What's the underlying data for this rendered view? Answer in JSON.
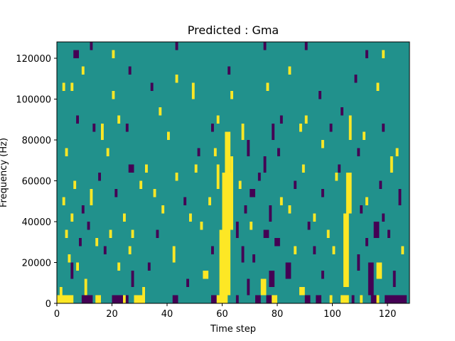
{
  "chart_data": {
    "type": "heatmap",
    "title": "Predicted : Gma",
    "xlabel": "Time step",
    "ylabel": "Frequency (Hz)",
    "xlim": [
      0,
      128
    ],
    "ylim": [
      0,
      128000
    ],
    "x_ticks": [
      0,
      20,
      40,
      60,
      80,
      100,
      120
    ],
    "y_ticks": [
      0,
      20000,
      40000,
      60000,
      80000,
      100000,
      120000
    ],
    "n_time_steps": 128,
    "n_freq_bins": 32,
    "freq_bin_width_hz": 4000,
    "value_levels": [
      -1,
      0,
      1
    ],
    "colormap": {
      "-1": "#440154",
      "0": "#21918c",
      "1": "#fde725"
    },
    "background_value": 0,
    "cells": [
      {
        "v": 1,
        "x0": 0,
        "x1": 6,
        "y0": 0,
        "y1": 4000
      },
      {
        "v": 1,
        "x0": 14,
        "x1": 16,
        "y0": 0,
        "y1": 4000
      },
      {
        "v": -1,
        "x0": 9,
        "x1": 13,
        "y0": 0,
        "y1": 4000
      },
      {
        "v": -1,
        "x0": 20,
        "x1": 24,
        "y0": 0,
        "y1": 4000
      },
      {
        "v": 1,
        "x0": 24,
        "x1": 25,
        "y0": 0,
        "y1": 4000
      },
      {
        "v": -1,
        "x0": 25,
        "x1": 26,
        "y0": 0,
        "y1": 4000
      },
      {
        "v": 1,
        "x0": 28,
        "x1": 32,
        "y0": 0,
        "y1": 4000
      },
      {
        "v": -1,
        "x0": 42,
        "x1": 44,
        "y0": 0,
        "y1": 4000
      },
      {
        "v": -1,
        "x0": 56,
        "x1": 58,
        "y0": 0,
        "y1": 4000
      },
      {
        "v": 1,
        "x0": 58,
        "x1": 62,
        "y0": 0,
        "y1": 4000
      },
      {
        "v": -1,
        "x0": 65,
        "x1": 66,
        "y0": 0,
        "y1": 4000
      },
      {
        "v": -1,
        "x0": 72,
        "x1": 74,
        "y0": 0,
        "y1": 4000
      },
      {
        "v": -1,
        "x0": 76,
        "x1": 78,
        "y0": 0,
        "y1": 4000
      },
      {
        "v": 1,
        "x0": 78,
        "x1": 80,
        "y0": 0,
        "y1": 4000
      },
      {
        "v": -1,
        "x0": 90,
        "x1": 92,
        "y0": 0,
        "y1": 4000
      },
      {
        "v": -1,
        "x0": 94,
        "x1": 96,
        "y0": 0,
        "y1": 4000
      },
      {
        "v": 1,
        "x0": 99,
        "x1": 100,
        "y0": 0,
        "y1": 4000
      },
      {
        "v": 1,
        "x0": 103,
        "x1": 106,
        "y0": 0,
        "y1": 4000
      },
      {
        "v": -1,
        "x0": 107,
        "x1": 108,
        "y0": 0,
        "y1": 4000
      },
      {
        "v": 1,
        "x0": 110,
        "x1": 111,
        "y0": 0,
        "y1": 4000
      },
      {
        "v": -1,
        "x0": 114,
        "x1": 116,
        "y0": 0,
        "y1": 4000
      },
      {
        "v": 1,
        "x0": 116,
        "x1": 117,
        "y0": 0,
        "y1": 4000
      },
      {
        "v": -1,
        "x0": 119,
        "x1": 127,
        "y0": 0,
        "y1": 4000
      },
      {
        "v": 1,
        "x0": 59,
        "x1": 63,
        "y0": 4000,
        "y1": 36000
      },
      {
        "v": 1,
        "x0": 60,
        "x1": 64,
        "y0": 36000,
        "y1": 64000
      },
      {
        "v": 1,
        "x0": 61,
        "x1": 63,
        "y0": 64000,
        "y1": 84000
      },
      {
        "v": 1,
        "x0": 58,
        "x1": 59,
        "y0": 56000,
        "y1": 68000
      },
      {
        "v": 1,
        "x0": 63,
        "x1": 64,
        "y0": 60000,
        "y1": 72000
      },
      {
        "v": 1,
        "x0": 104,
        "x1": 106,
        "y0": 8000,
        "y1": 44000
      },
      {
        "v": 1,
        "x0": 105,
        "x1": 107,
        "y0": 44000,
        "y1": 64000
      },
      {
        "v": 1,
        "x0": 106,
        "x1": 107,
        "y0": 80000,
        "y1": 92000
      },
      {
        "v": 1,
        "x0": 1,
        "x1": 2,
        "y0": 4000,
        "y1": 8000
      },
      {
        "v": -1,
        "x0": 5,
        "x1": 6,
        "y0": 12000,
        "y1": 20000
      },
      {
        "v": 1,
        "x0": 10,
        "x1": 11,
        "y0": 4000,
        "y1": 12000
      },
      {
        "v": 1,
        "x0": 7,
        "x1": 8,
        "y0": 16000,
        "y1": 20000
      },
      {
        "v": 1,
        "x0": 22,
        "x1": 23,
        "y0": 16000,
        "y1": 20000
      },
      {
        "v": -1,
        "x0": 27,
        "x1": 28,
        "y0": 8000,
        "y1": 16000
      },
      {
        "v": 1,
        "x0": 31,
        "x1": 32,
        "y0": 4000,
        "y1": 8000
      },
      {
        "v": -1,
        "x0": 33,
        "x1": 34,
        "y0": 16000,
        "y1": 20000
      },
      {
        "v": -1,
        "x0": 47,
        "x1": 48,
        "y0": 8000,
        "y1": 12000
      },
      {
        "v": 1,
        "x0": 53,
        "x1": 55,
        "y0": 12000,
        "y1": 16000
      },
      {
        "v": -1,
        "x0": 69,
        "x1": 70,
        "y0": 4000,
        "y1": 12000
      },
      {
        "v": 1,
        "x0": 74,
        "x1": 76,
        "y0": 4000,
        "y1": 12000
      },
      {
        "v": -1,
        "x0": 77,
        "x1": 79,
        "y0": 8000,
        "y1": 16000
      },
      {
        "v": -1,
        "x0": 83,
        "x1": 85,
        "y0": 12000,
        "y1": 20000
      },
      {
        "v": 1,
        "x0": 88,
        "x1": 90,
        "y0": 4000,
        "y1": 8000
      },
      {
        "v": -1,
        "x0": 96,
        "x1": 97,
        "y0": 12000,
        "y1": 16000
      },
      {
        "v": -1,
        "x0": 109,
        "x1": 110,
        "y0": 16000,
        "y1": 24000
      },
      {
        "v": -1,
        "x0": 113,
        "x1": 115,
        "y0": 4000,
        "y1": 20000
      },
      {
        "v": 1,
        "x0": 116,
        "x1": 118,
        "y0": 12000,
        "y1": 20000
      },
      {
        "v": -1,
        "x0": 122,
        "x1": 123,
        "y0": 8000,
        "y1": 16000
      },
      {
        "v": 1,
        "x0": 4,
        "x1": 5,
        "y0": 20000,
        "y1": 24000
      },
      {
        "v": -1,
        "x0": 8,
        "x1": 9,
        "y0": 28000,
        "y1": 32000
      },
      {
        "v": 1,
        "x0": 14,
        "x1": 15,
        "y0": 28000,
        "y1": 32000
      },
      {
        "v": -1,
        "x0": 17,
        "x1": 18,
        "y0": 24000,
        "y1": 28000
      },
      {
        "v": 1,
        "x0": 26,
        "x1": 27,
        "y0": 24000,
        "y1": 28000
      },
      {
        "v": 1,
        "x0": 42,
        "x1": 43,
        "y0": 20000,
        "y1": 28000
      },
      {
        "v": -1,
        "x0": 56,
        "x1": 57,
        "y0": 24000,
        "y1": 28000
      },
      {
        "v": -1,
        "x0": 67,
        "x1": 68,
        "y0": 20000,
        "y1": 28000
      },
      {
        "v": -1,
        "x0": 71,
        "x1": 72,
        "y0": 20000,
        "y1": 24000
      },
      {
        "v": -1,
        "x0": 79,
        "x1": 81,
        "y0": 28000,
        "y1": 32000
      },
      {
        "v": 1,
        "x0": 86,
        "x1": 87,
        "y0": 24000,
        "y1": 28000
      },
      {
        "v": -1,
        "x0": 93,
        "x1": 94,
        "y0": 24000,
        "y1": 28000
      },
      {
        "v": 1,
        "x0": 100,
        "x1": 101,
        "y0": 24000,
        "y1": 28000
      },
      {
        "v": -1,
        "x0": 112,
        "x1": 113,
        "y0": 28000,
        "y1": 32000
      },
      {
        "v": 1,
        "x0": 125,
        "x1": 126,
        "y0": 24000,
        "y1": 28000
      },
      {
        "v": 1,
        "x0": 3,
        "x1": 4,
        "y0": 32000,
        "y1": 36000
      },
      {
        "v": -1,
        "x0": 11,
        "x1": 12,
        "y0": 36000,
        "y1": 40000
      },
      {
        "v": 1,
        "x0": 19,
        "x1": 20,
        "y0": 32000,
        "y1": 36000
      },
      {
        "v": 1,
        "x0": 27,
        "x1": 28,
        "y0": 32000,
        "y1": 36000
      },
      {
        "v": -1,
        "x0": 36,
        "x1": 37,
        "y0": 32000,
        "y1": 36000
      },
      {
        "v": 1,
        "x0": 52,
        "x1": 53,
        "y0": 36000,
        "y1": 40000
      },
      {
        "v": -1,
        "x0": 65,
        "x1": 66,
        "y0": 32000,
        "y1": 40000
      },
      {
        "v": 1,
        "x0": 70,
        "x1": 71,
        "y0": 36000,
        "y1": 40000
      },
      {
        "v": -1,
        "x0": 75,
        "x1": 77,
        "y0": 32000,
        "y1": 36000
      },
      {
        "v": -1,
        "x0": 91,
        "x1": 92,
        "y0": 36000,
        "y1": 40000
      },
      {
        "v": 1,
        "x0": 98,
        "x1": 99,
        "y0": 32000,
        "y1": 36000
      },
      {
        "v": -1,
        "x0": 115,
        "x1": 117,
        "y0": 32000,
        "y1": 40000
      },
      {
        "v": -1,
        "x0": 120,
        "x1": 121,
        "y0": 32000,
        "y1": 36000
      },
      {
        "v": 1,
        "x0": 5,
        "x1": 6,
        "y0": 40000,
        "y1": 44000
      },
      {
        "v": -1,
        "x0": 9,
        "x1": 10,
        "y0": 44000,
        "y1": 48000
      },
      {
        "v": 1,
        "x0": 24,
        "x1": 25,
        "y0": 40000,
        "y1": 44000
      },
      {
        "v": 1,
        "x0": 38,
        "x1": 39,
        "y0": 44000,
        "y1": 48000
      },
      {
        "v": 1,
        "x0": 48,
        "x1": 49,
        "y0": 40000,
        "y1": 44000
      },
      {
        "v": -1,
        "x0": 68,
        "x1": 69,
        "y0": 44000,
        "y1": 48000
      },
      {
        "v": -1,
        "x0": 77,
        "x1": 78,
        "y0": 40000,
        "y1": 48000
      },
      {
        "v": 1,
        "x0": 84,
        "x1": 85,
        "y0": 44000,
        "y1": 48000
      },
      {
        "v": 1,
        "x0": 93,
        "x1": 94,
        "y0": 40000,
        "y1": 44000
      },
      {
        "v": -1,
        "x0": 110,
        "x1": 111,
        "y0": 44000,
        "y1": 48000
      },
      {
        "v": -1,
        "x0": 118,
        "x1": 119,
        "y0": 40000,
        "y1": 44000
      },
      {
        "v": 1,
        "x0": 2,
        "x1": 3,
        "y0": 48000,
        "y1": 52000
      },
      {
        "v": 1,
        "x0": 12,
        "x1": 13,
        "y0": 48000,
        "y1": 56000
      },
      {
        "v": -1,
        "x0": 21,
        "x1": 22,
        "y0": 52000,
        "y1": 56000
      },
      {
        "v": 1,
        "x0": 35,
        "x1": 36,
        "y0": 52000,
        "y1": 56000
      },
      {
        "v": -1,
        "x0": 46,
        "x1": 47,
        "y0": 48000,
        "y1": 52000
      },
      {
        "v": 1,
        "x0": 55,
        "x1": 56,
        "y0": 48000,
        "y1": 52000
      },
      {
        "v": -1,
        "x0": 70,
        "x1": 72,
        "y0": 52000,
        "y1": 56000
      },
      {
        "v": 1,
        "x0": 81,
        "x1": 82,
        "y0": 48000,
        "y1": 52000
      },
      {
        "v": -1,
        "x0": 96,
        "x1": 97,
        "y0": 52000,
        "y1": 56000
      },
      {
        "v": 1,
        "x0": 112,
        "x1": 113,
        "y0": 48000,
        "y1": 52000
      },
      {
        "v": -1,
        "x0": 124,
        "x1": 125,
        "y0": 48000,
        "y1": 56000
      },
      {
        "v": 1,
        "x0": 6,
        "x1": 7,
        "y0": 56000,
        "y1": 60000
      },
      {
        "v": -1,
        "x0": 15,
        "x1": 16,
        "y0": 60000,
        "y1": 64000
      },
      {
        "v": 1,
        "x0": 30,
        "x1": 31,
        "y0": 56000,
        "y1": 60000
      },
      {
        "v": 1,
        "x0": 43,
        "x1": 44,
        "y0": 60000,
        "y1": 64000
      },
      {
        "v": 1,
        "x0": 66,
        "x1": 67,
        "y0": 56000,
        "y1": 60000
      },
      {
        "v": -1,
        "x0": 73,
        "x1": 74,
        "y0": 60000,
        "y1": 64000
      },
      {
        "v": -1,
        "x0": 86,
        "x1": 87,
        "y0": 56000,
        "y1": 60000
      },
      {
        "v": 1,
        "x0": 101,
        "x1": 102,
        "y0": 60000,
        "y1": 64000
      },
      {
        "v": -1,
        "x0": 117,
        "x1": 118,
        "y0": 56000,
        "y1": 60000
      },
      {
        "v": -1,
        "x0": 26,
        "x1": 28,
        "y0": 64000,
        "y1": 68000
      },
      {
        "v": 1,
        "x0": 32,
        "x1": 33,
        "y0": 64000,
        "y1": 68000
      },
      {
        "v": 1,
        "x0": 50,
        "x1": 51,
        "y0": 64000,
        "y1": 68000
      },
      {
        "v": -1,
        "x0": 75,
        "x1": 76,
        "y0": 64000,
        "y1": 72000
      },
      {
        "v": 1,
        "x0": 89,
        "x1": 90,
        "y0": 64000,
        "y1": 68000
      },
      {
        "v": -1,
        "x0": 102,
        "x1": 103,
        "y0": 64000,
        "y1": 68000
      },
      {
        "v": 1,
        "x0": 121,
        "x1": 122,
        "y0": 64000,
        "y1": 72000
      },
      {
        "v": 1,
        "x0": 3,
        "x1": 4,
        "y0": 72000,
        "y1": 76000
      },
      {
        "v": 1,
        "x0": 18,
        "x1": 19,
        "y0": 72000,
        "y1": 76000
      },
      {
        "v": -1,
        "x0": 51,
        "x1": 52,
        "y0": 72000,
        "y1": 76000
      },
      {
        "v": 1,
        "x0": 57,
        "x1": 58,
        "y0": 72000,
        "y1": 76000
      },
      {
        "v": -1,
        "x0": 69,
        "x1": 70,
        "y0": 72000,
        "y1": 80000
      },
      {
        "v": -1,
        "x0": 80,
        "x1": 81,
        "y0": 72000,
        "y1": 76000
      },
      {
        "v": 1,
        "x0": 96,
        "x1": 97,
        "y0": 76000,
        "y1": 80000
      },
      {
        "v": -1,
        "x0": 109,
        "x1": 110,
        "y0": 72000,
        "y1": 76000
      },
      {
        "v": 1,
        "x0": 123,
        "x1": 124,
        "y0": 72000,
        "y1": 76000
      },
      {
        "v": -1,
        "x0": 13,
        "x1": 14,
        "y0": 84000,
        "y1": 88000
      },
      {
        "v": 1,
        "x0": 16,
        "x1": 17,
        "y0": 80000,
        "y1": 88000
      },
      {
        "v": -1,
        "x0": 25,
        "x1": 26,
        "y0": 84000,
        "y1": 88000
      },
      {
        "v": 1,
        "x0": 40,
        "x1": 41,
        "y0": 80000,
        "y1": 84000
      },
      {
        "v": -1,
        "x0": 56,
        "x1": 57,
        "y0": 84000,
        "y1": 88000
      },
      {
        "v": 1,
        "x0": 67,
        "x1": 68,
        "y0": 80000,
        "y1": 88000
      },
      {
        "v": -1,
        "x0": 78,
        "x1": 79,
        "y0": 80000,
        "y1": 88000
      },
      {
        "v": 1,
        "x0": 88,
        "x1": 89,
        "y0": 84000,
        "y1": 88000
      },
      {
        "v": -1,
        "x0": 99,
        "x1": 100,
        "y0": 84000,
        "y1": 88000
      },
      {
        "v": 1,
        "x0": 111,
        "x1": 112,
        "y0": 80000,
        "y1": 84000
      },
      {
        "v": -1,
        "x0": 118,
        "x1": 119,
        "y0": 84000,
        "y1": 88000
      },
      {
        "v": -1,
        "x0": 7,
        "x1": 8,
        "y0": 88000,
        "y1": 92000
      },
      {
        "v": 1,
        "x0": 22,
        "x1": 23,
        "y0": 88000,
        "y1": 92000
      },
      {
        "v": 1,
        "x0": 37,
        "x1": 38,
        "y0": 92000,
        "y1": 96000
      },
      {
        "v": 1,
        "x0": 58,
        "x1": 59,
        "y0": 88000,
        "y1": 92000
      },
      {
        "v": -1,
        "x0": 81,
        "x1": 82,
        "y0": 88000,
        "y1": 92000
      },
      {
        "v": 1,
        "x0": 90,
        "x1": 91,
        "y0": 88000,
        "y1": 92000
      },
      {
        "v": -1,
        "x0": 103,
        "x1": 104,
        "y0": 92000,
        "y1": 96000
      },
      {
        "v": 1,
        "x0": 2,
        "x1": 3,
        "y0": 104000,
        "y1": 108000
      },
      {
        "v": 1,
        "x0": 5,
        "x1": 6,
        "y0": 104000,
        "y1": 108000
      },
      {
        "v": 1,
        "x0": 20,
        "x1": 21,
        "y0": 100000,
        "y1": 104000
      },
      {
        "v": -1,
        "x0": 34,
        "x1": 35,
        "y0": 104000,
        "y1": 108000
      },
      {
        "v": 1,
        "x0": 49,
        "x1": 50,
        "y0": 100000,
        "y1": 108000
      },
      {
        "v": 1,
        "x0": 63,
        "x1": 64,
        "y0": 100000,
        "y1": 104000
      },
      {
        "v": 1,
        "x0": 76,
        "x1": 77,
        "y0": 104000,
        "y1": 108000
      },
      {
        "v": -1,
        "x0": 95,
        "x1": 96,
        "y0": 100000,
        "y1": 104000
      },
      {
        "v": 1,
        "x0": 116,
        "x1": 117,
        "y0": 104000,
        "y1": 108000
      },
      {
        "v": 1,
        "x0": 9,
        "x1": 10,
        "y0": 112000,
        "y1": 116000
      },
      {
        "v": -1,
        "x0": 26,
        "x1": 27,
        "y0": 112000,
        "y1": 116000
      },
      {
        "v": 1,
        "x0": 43,
        "x1": 44,
        "y0": 108000,
        "y1": 112000
      },
      {
        "v": -1,
        "x0": 62,
        "x1": 63,
        "y0": 112000,
        "y1": 116000
      },
      {
        "v": 1,
        "x0": 84,
        "x1": 85,
        "y0": 112000,
        "y1": 116000
      },
      {
        "v": -1,
        "x0": 108,
        "x1": 109,
        "y0": 108000,
        "y1": 112000
      },
      {
        "v": -1,
        "x0": 6,
        "x1": 8,
        "y0": 120000,
        "y1": 124000
      },
      {
        "v": -1,
        "x0": 12,
        "x1": 13,
        "y0": 124000,
        "y1": 128000
      },
      {
        "v": 1,
        "x0": 20,
        "x1": 21,
        "y0": 120000,
        "y1": 124000
      },
      {
        "v": -1,
        "x0": 43,
        "x1": 44,
        "y0": 124000,
        "y1": 128000
      },
      {
        "v": -1,
        "x0": 75,
        "x1": 76,
        "y0": 124000,
        "y1": 128000
      },
      {
        "v": -1,
        "x0": 90,
        "x1": 91,
        "y0": 124000,
        "y1": 128000
      },
      {
        "v": -1,
        "x0": 112,
        "x1": 113,
        "y0": 120000,
        "y1": 124000
      },
      {
        "v": 1,
        "x0": 118,
        "x1": 119,
        "y0": 120000,
        "y1": 124000
      }
    ]
  }
}
